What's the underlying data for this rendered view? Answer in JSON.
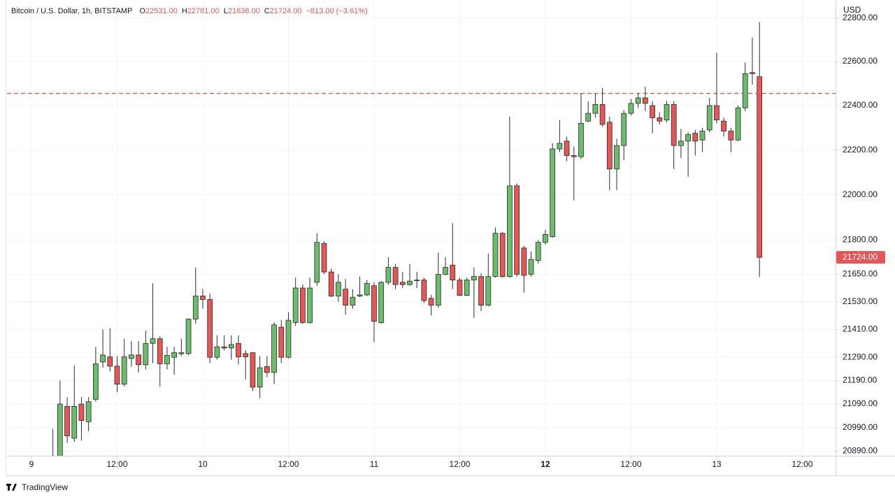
{
  "chart_data": {
    "type": "candlestick",
    "title": "Bitcoin / U.S. Dollar, 1h, BITSTAMP",
    "ohlc_legend": [
      {
        "key": "O",
        "value": "22531.00"
      },
      {
        "key": "H",
        "value": "22781.00"
      },
      {
        "key": "L",
        "value": "21638.00"
      },
      {
        "key": "C",
        "value": "21724.00"
      }
    ],
    "change": "−813.00 (−3.61%)",
    "y_label": "USD",
    "branding": "TradingView",
    "log_scale": true,
    "grid": true,
    "up_color": "#6dbb6d",
    "down_color": "#e25858",
    "border_color": "#2b2b2b",
    "xlim": [
      -3.43,
      112.66
    ],
    "xticks": [
      {
        "value": 0,
        "label": "9"
      },
      {
        "value": 12,
        "label": "12:00"
      },
      {
        "value": 24,
        "label": "10"
      },
      {
        "value": 36,
        "label": "12:00"
      },
      {
        "value": 48,
        "label": "11"
      },
      {
        "value": 60,
        "label": "12:00"
      },
      {
        "value": 72,
        "label": "12",
        "bold": true
      },
      {
        "value": 84,
        "label": "12:00"
      },
      {
        "value": 96,
        "label": "13"
      },
      {
        "value": 108,
        "label": "12:00"
      }
    ],
    "ylim": [
      20871,
      22873
    ],
    "yticks": [
      {
        "value": 22800,
        "label": "22800.00"
      },
      {
        "value": 22600,
        "label": "22600.00"
      },
      {
        "value": 22400,
        "label": "22400.00"
      },
      {
        "value": 22200,
        "label": "22200.00"
      },
      {
        "value": 22000,
        "label": "22000.00"
      },
      {
        "value": 21800,
        "label": "21800.00"
      },
      {
        "value": 21650,
        "label": "21650.00"
      },
      {
        "value": 21530,
        "label": "21530.00"
      },
      {
        "value": 21410,
        "label": "21410.00"
      },
      {
        "value": 21290,
        "label": "21290.00"
      },
      {
        "value": 21190,
        "label": "21190.00"
      },
      {
        "value": 21090,
        "label": "21090.00"
      },
      {
        "value": 20990,
        "label": "20990.00"
      },
      {
        "value": 20890,
        "label": "20890.00"
      }
    ],
    "price_line": {
      "value": 22455,
      "color": "#e53935"
    },
    "last_price": {
      "value": 21724,
      "label": "21724.00"
    },
    "x": [
      3,
      4,
      5,
      6,
      7,
      8,
      9,
      10,
      11,
      12,
      13,
      14,
      15,
      16,
      17,
      18,
      19,
      20,
      21,
      22,
      23,
      24,
      25,
      26,
      27,
      28,
      29,
      30,
      31,
      32,
      33,
      34,
      35,
      36,
      37,
      38,
      39,
      40,
      41,
      42,
      43,
      44,
      45,
      46,
      47,
      48,
      49,
      50,
      51,
      52,
      53,
      54,
      55,
      56,
      57,
      58,
      59,
      60,
      61,
      62,
      63,
      64,
      65,
      66,
      67,
      68,
      69,
      70,
      71,
      72,
      73,
      74,
      75,
      76,
      77,
      78,
      79,
      80,
      81,
      82,
      83,
      84,
      85,
      86,
      87,
      88,
      89,
      90,
      91,
      92,
      93,
      94,
      95,
      96,
      97,
      98,
      99,
      100,
      101,
      102
    ],
    "open": [
      20840,
      20850,
      21080,
      20945,
      21090,
      21015,
      21110,
      21270,
      21292,
      21252,
      21175,
      21285,
      21300,
      21258,
      21350,
      21370,
      21262,
      21290,
      21305,
      21306,
      21455,
      21555,
      21540,
      21290,
      21335,
      21330,
      21350,
      21306,
      21310,
      21162,
      21250,
      21225,
      21420,
      21290,
      21440,
      21590,
      21440,
      21615,
      21785,
      21660,
      21555,
      21585,
      21515,
      21555,
      21560,
      21600,
      21440,
      21615,
      21680,
      21615,
      21605,
      21622,
      21625,
      21545,
      21515,
      21650,
      21690,
      21625,
      21558,
      21625,
      21640,
      21515,
      21640,
      21830,
      21640,
      22040,
      21765,
      21650,
      21710,
      21790,
      21815,
      22205,
      22240,
      22175,
      22170,
      22330,
      22365,
      22405,
      22325,
      22115,
      22220,
      22365,
      22410,
      22435,
      22400,
      22345,
      22335,
      22405,
      22220,
      22240,
      22275,
      22245,
      22290,
      22400,
      22330,
      22285,
      22245,
      22390,
      22550,
      22531
    ],
    "high": [
      20985,
      21190,
      21120,
      21255,
      21120,
      21120,
      21335,
      21410,
      21415,
      21295,
      21370,
      21360,
      21360,
      21405,
      21610,
      21380,
      21335,
      21335,
      21370,
      21458,
      21680,
      21585,
      21565,
      21385,
      21385,
      21385,
      21385,
      21320,
      21312,
      21295,
      21295,
      21442,
      21450,
      21485,
      21635,
      21605,
      21635,
      21830,
      21795,
      21675,
      21650,
      21630,
      21585,
      21640,
      21625,
      21615,
      21620,
      21725,
      21695,
      21660,
      21695,
      21660,
      21635,
      21560,
      21745,
      21725,
      21875,
      21635,
      21635,
      21680,
      21655,
      21740,
      21855,
      21835,
      22350,
      22050,
      21775,
      21750,
      21800,
      21845,
      22230,
      22335,
      22260,
      22215,
      22455,
      22420,
      22455,
      22480,
      22350,
      22250,
      22380,
      22430,
      22455,
      22485,
      22420,
      22370,
      22420,
      22420,
      22295,
      22280,
      22290,
      22300,
      22435,
      22640,
      22345,
      22300,
      22400,
      22595,
      22710,
      22781
    ],
    "low": [
      20800,
      20780,
      20925,
      20930,
      20935,
      20975,
      21100,
      21245,
      21230,
      21140,
      21165,
      21250,
      21225,
      21238,
      21265,
      21165,
      21238,
      21215,
      21295,
      21300,
      21435,
      21500,
      21265,
      21280,
      21320,
      21280,
      21260,
      21195,
      21145,
      21115,
      21205,
      21175,
      21265,
      21285,
      21425,
      21435,
      21435,
      21600,
      21650,
      21550,
      21530,
      21475,
      21500,
      21550,
      21555,
      21355,
      21435,
      21605,
      21585,
      21590,
      21600,
      21590,
      21525,
      21470,
      21505,
      21645,
      21585,
      21555,
      21555,
      21460,
      21490,
      21510,
      21635,
      21635,
      21635,
      21640,
      21570,
      21640,
      21695,
      21780,
      21810,
      22190,
      22150,
      21975,
      22160,
      22325,
      22345,
      22305,
      22020,
      22020,
      22155,
      22355,
      22390,
      22375,
      22275,
      22315,
      22325,
      22115,
      22165,
      22080,
      22175,
      22190,
      22280,
      22320,
      22260,
      22190,
      22240,
      22375,
      22495,
      21638
    ],
    "close": [
      20870,
      21090,
      20955,
      21080,
      21020,
      21100,
      21262,
      21300,
      21252,
      21175,
      21292,
      21300,
      21258,
      21350,
      21370,
      21262,
      21298,
      21310,
      21310,
      21455,
      21555,
      21540,
      21290,
      21335,
      21330,
      21345,
      21292,
      21292,
      21162,
      21245,
      21225,
      21430,
      21290,
      21450,
      21590,
      21440,
      21590,
      21790,
      21660,
      21555,
      21615,
      21515,
      21550,
      21560,
      21610,
      21445,
      21615,
      21680,
      21605,
      21605,
      21620,
      21625,
      21535,
      21515,
      21650,
      21680,
      21625,
      21558,
      21625,
      21640,
      21515,
      21640,
      21830,
      21640,
      22040,
      21650,
      21645,
      21715,
      21790,
      21825,
      22205,
      22230,
      22175,
      22170,
      22320,
      22365,
      22405,
      22315,
      22115,
      22220,
      22365,
      22410,
      22435,
      22410,
      22345,
      22330,
      22405,
      22220,
      22240,
      22270,
      22240,
      22285,
      22400,
      22335,
      22285,
      22245,
      22390,
      22545,
      22545,
      21724
    ]
  }
}
